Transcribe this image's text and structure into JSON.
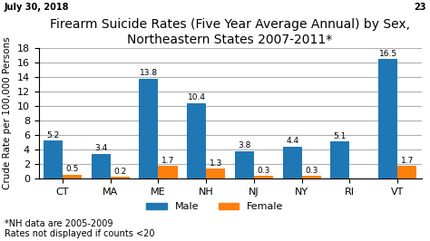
{
  "chart_data": {
    "type": "bar",
    "title": "Firearm Suicide Rates (Five Year Average Annual) by Sex,\nNortheastern States 2007-2011*",
    "categories": [
      "CT",
      "MA",
      "ME",
      "NH",
      "NJ",
      "NY",
      "RI",
      "VT"
    ],
    "series": [
      {
        "name": "Male",
        "values": [
          5.2,
          3.4,
          13.8,
          10.4,
          3.8,
          4.4,
          5.1,
          16.5
        ]
      },
      {
        "name": "Female",
        "values": [
          0.5,
          0.2,
          1.7,
          1.3,
          0.3,
          0.3,
          null,
          1.7
        ]
      }
    ],
    "y_label": "Crude Rate per 100,000 Persons",
    "ylim": [
      0,
      18
    ],
    "yticks": [
      0,
      2,
      4,
      6,
      8,
      10,
      12,
      14,
      16,
      18
    ],
    "grid": true,
    "legend": "lower center",
    "data_labels": true,
    "annotations": [
      "*NH data are 2005-2009",
      "Rates not displayed if counts <20"
    ],
    "header": "July 30, 2018",
    "page_number": "23"
  }
}
